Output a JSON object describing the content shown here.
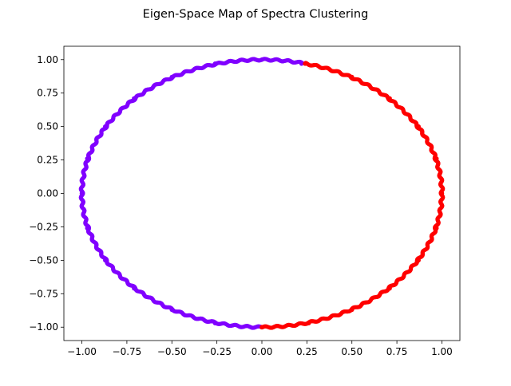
{
  "chart_data": {
    "type": "scatter",
    "title": "Eigen-Space Map of Spectra Clustering",
    "xlabel": "",
    "ylabel": "",
    "xlim": [
      -1.1,
      1.1
    ],
    "ylim": [
      -1.1,
      1.1
    ],
    "x_ticks": [
      "−1.00",
      "−0.75",
      "−0.50",
      "−0.25",
      "0.00",
      "0.25",
      "0.50",
      "0.75",
      "1.00"
    ],
    "y_ticks": [
      "−1.00",
      "−0.75",
      "−0.50",
      "−0.25",
      "0.00",
      "0.25",
      "0.50",
      "0.75",
      "1.00"
    ],
    "grid": false,
    "series": [
      {
        "color": "#8000ff",
        "shape": "unit-circle-arc",
        "angle_range_deg": [
          77,
          270
        ],
        "x": [
          0.22,
          0.0,
          -0.26,
          -0.5,
          -0.71,
          -0.87,
          -0.97,
          -1.0,
          -0.97,
          -0.87,
          -0.71,
          -0.5,
          -0.26,
          0.0
        ],
        "y": [
          0.97,
          1.0,
          0.97,
          0.87,
          0.71,
          0.5,
          0.26,
          0.0,
          -0.26,
          -0.5,
          -0.71,
          -0.87,
          -0.97,
          -1.0
        ]
      },
      {
        "color": "#ff0000",
        "shape": "unit-circle-arc",
        "angle_range_deg": [
          -90,
          76
        ],
        "x": [
          0.0,
          0.26,
          0.5,
          0.71,
          0.87,
          0.97,
          1.0,
          0.97,
          0.87,
          0.71,
          0.5,
          0.24
        ],
        "y": [
          -1.0,
          -0.97,
          -0.87,
          -0.71,
          -0.5,
          -0.26,
          0.0,
          0.26,
          0.5,
          0.71,
          0.87,
          0.97
        ]
      }
    ]
  }
}
